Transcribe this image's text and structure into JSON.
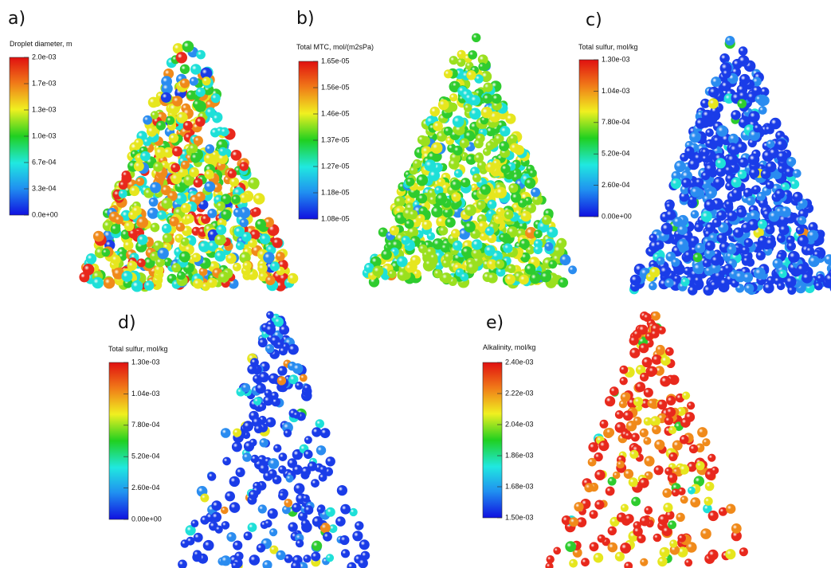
{
  "panels": [
    {
      "label": "a)",
      "colorbar": {
        "title": "Droplet diameter, m",
        "ticks": [
          "2.0e-03",
          "1.7e-03",
          "1.3e-03",
          "1.0e-03",
          "6.7e-04",
          "3.3e-04",
          "0.0e+00"
        ]
      }
    },
    {
      "label": "b)",
      "colorbar": {
        "title": "Total MTC, mol/(m2sPa)",
        "ticks": [
          "1.65e-05",
          "1.56e-05",
          "1.46e-05",
          "1.37e-05",
          "1.27e-05",
          "1.18e-05",
          "1.08e-05"
        ]
      }
    },
    {
      "label": "c)",
      "colorbar": {
        "title": "Total sulfur, mol/kg",
        "ticks": [
          "1.30e-03",
          "1.04e-03",
          "7.80e-04",
          "5.20e-04",
          "2.60e-04",
          "0.00e+00"
        ]
      }
    },
    {
      "label": "d)",
      "colorbar": {
        "title": "Total sulfur, mol/kg",
        "ticks": [
          "1.30e-03",
          "1.04e-03",
          "7.80e-04",
          "5.20e-04",
          "2.60e-04",
          "0.00e+00"
        ]
      }
    },
    {
      "label": "e)",
      "colorbar": {
        "title": "Alkalinity, mol/kg",
        "ticks": [
          "2.40e-03",
          "2.22e-03",
          "2.04e-03",
          "1.86e-03",
          "1.68e-03",
          "1.50e-03"
        ]
      }
    }
  ]
}
